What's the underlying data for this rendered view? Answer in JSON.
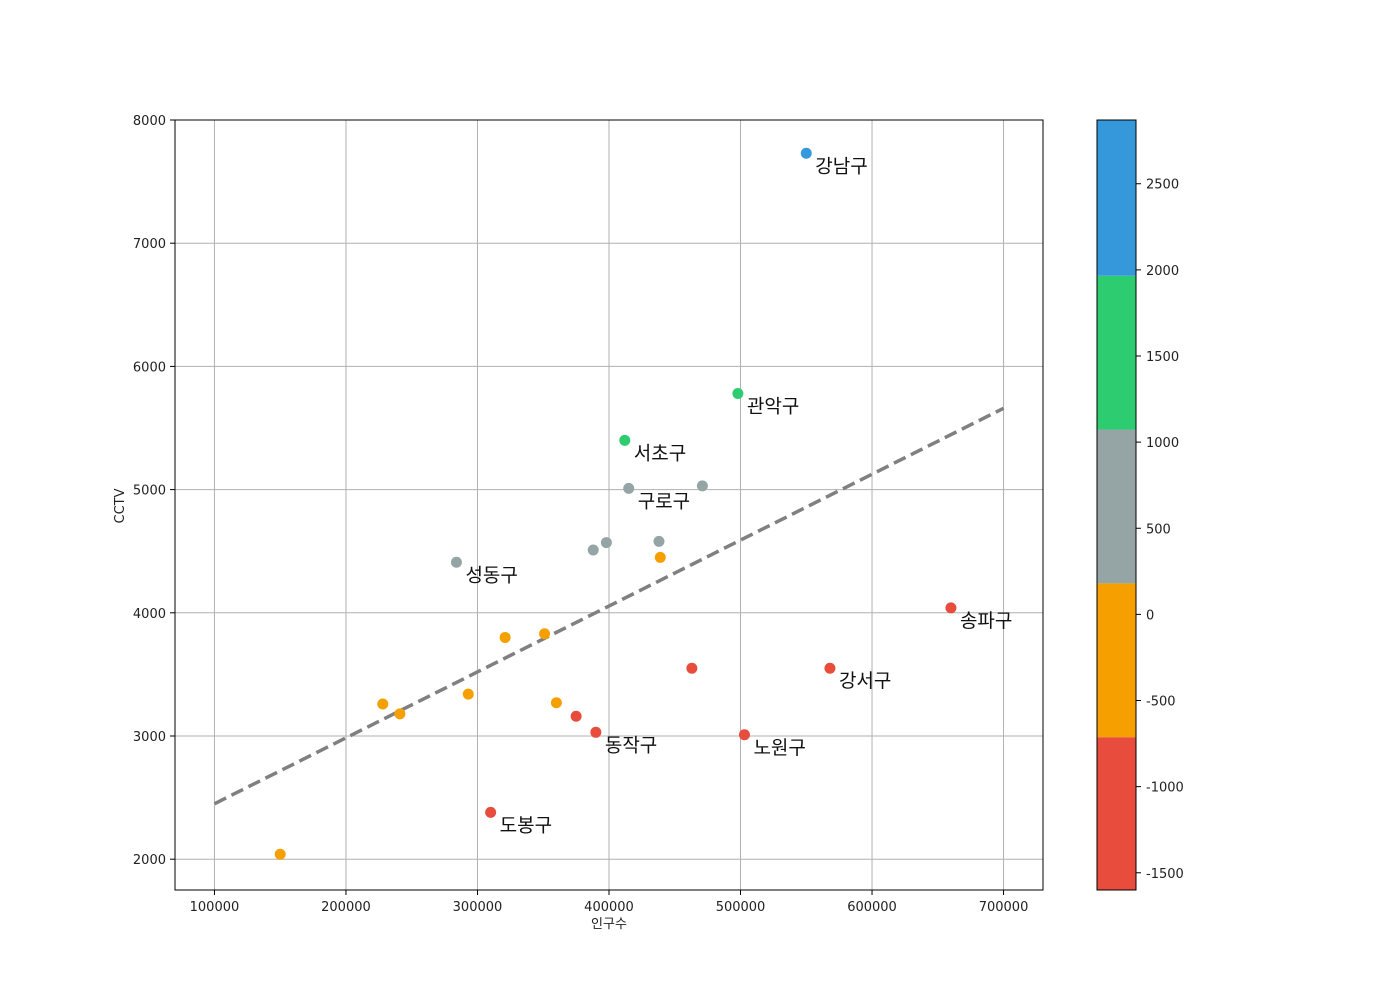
{
  "chart_data": {
    "type": "scatter",
    "title": "",
    "xlabel": "인구수",
    "ylabel": "CCTV",
    "xlim": [
      70000,
      730000
    ],
    "ylim": [
      1750,
      8000
    ],
    "xticks": [
      100000,
      200000,
      300000,
      400000,
      500000,
      600000,
      700000
    ],
    "yticks": [
      2000,
      3000,
      4000,
      5000,
      6000,
      7000,
      8000
    ],
    "grid": true,
    "trend_line": {
      "style": "dashed",
      "color": "#808080",
      "start": [
        100000,
        2450
      ],
      "end": [
        700000,
        5660
      ]
    },
    "colorbar": {
      "min": -1600,
      "max": 2870,
      "ticks": [
        -1500,
        -1000,
        -500,
        0,
        500,
        1000,
        1500,
        2000,
        2500
      ],
      "bands": [
        {
          "from": -1600,
          "to": -713,
          "color": "#e74c3c"
        },
        {
          "from": -713,
          "to": 180,
          "color": "#f5a000"
        },
        {
          "from": 180,
          "to": 1073,
          "color": "#95a5a6"
        },
        {
          "from": 1073,
          "to": 1966,
          "color": "#2ecc71"
        },
        {
          "from": 1966,
          "to": 2870,
          "color": "#3498db"
        }
      ]
    },
    "points": [
      {
        "x": 550000,
        "y": 7730,
        "color": "#3498db",
        "label": "강남구"
      },
      {
        "x": 498000,
        "y": 5780,
        "color": "#2ecc71",
        "label": "관악구"
      },
      {
        "x": 412000,
        "y": 5400,
        "color": "#2ecc71",
        "label": "서초구"
      },
      {
        "x": 415000,
        "y": 5010,
        "color": "#95a5a6",
        "label": "구로구"
      },
      {
        "x": 471000,
        "y": 5030,
        "color": "#95a5a6",
        "label": ""
      },
      {
        "x": 284000,
        "y": 4410,
        "color": "#95a5a6",
        "label": "성동구"
      },
      {
        "x": 388000,
        "y": 4510,
        "color": "#95a5a6",
        "label": ""
      },
      {
        "x": 398000,
        "y": 4570,
        "color": "#95a5a6",
        "label": ""
      },
      {
        "x": 438000,
        "y": 4580,
        "color": "#95a5a6",
        "label": ""
      },
      {
        "x": 439000,
        "y": 4450,
        "color": "#f5a000",
        "label": ""
      },
      {
        "x": 351000,
        "y": 3830,
        "color": "#f5a000",
        "label": ""
      },
      {
        "x": 321000,
        "y": 3800,
        "color": "#f5a000",
        "label": ""
      },
      {
        "x": 293000,
        "y": 3340,
        "color": "#f5a000",
        "label": ""
      },
      {
        "x": 228000,
        "y": 3260,
        "color": "#f5a000",
        "label": ""
      },
      {
        "x": 241000,
        "y": 3180,
        "color": "#f5a000",
        "label": ""
      },
      {
        "x": 360000,
        "y": 3270,
        "color": "#f5a000",
        "label": ""
      },
      {
        "x": 150000,
        "y": 2040,
        "color": "#f5a000",
        "label": ""
      },
      {
        "x": 660000,
        "y": 4040,
        "color": "#e74c3c",
        "label": "송파구"
      },
      {
        "x": 568000,
        "y": 3550,
        "color": "#e74c3c",
        "label": "강서구"
      },
      {
        "x": 463000,
        "y": 3550,
        "color": "#e74c3c",
        "label": ""
      },
      {
        "x": 375000,
        "y": 3160,
        "color": "#e74c3c",
        "label": ""
      },
      {
        "x": 390000,
        "y": 3030,
        "color": "#e74c3c",
        "label": "동작구"
      },
      {
        "x": 503000,
        "y": 3010,
        "color": "#e74c3c",
        "label": "노원구"
      },
      {
        "x": 310000,
        "y": 2380,
        "color": "#e74c3c",
        "label": "도봉구"
      }
    ]
  }
}
